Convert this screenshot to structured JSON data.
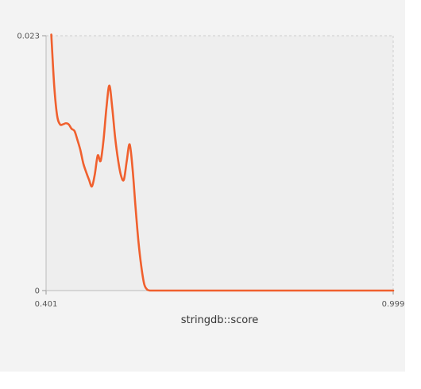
{
  "chart_data": {
    "type": "line",
    "xlabel": "stringdb::score",
    "ylabel": "",
    "title": "",
    "xlim": [
      0.401,
      0.999
    ],
    "ylim": [
      0,
      0.023
    ],
    "x_tick_labels": [
      "0.401",
      "0.999"
    ],
    "y_tick_labels": [
      "0",
      "0.023"
    ],
    "grid": false,
    "series": [
      {
        "color": "#f0602e",
        "x": [
          0.41,
          0.415,
          0.42,
          0.425,
          0.43,
          0.435,
          0.44,
          0.445,
          0.45,
          0.455,
          0.46,
          0.465,
          0.47,
          0.475,
          0.48,
          0.485,
          0.49,
          0.495,
          0.5,
          0.505,
          0.51,
          0.515,
          0.52,
          0.525,
          0.53,
          0.535,
          0.54,
          0.545,
          0.55,
          0.555,
          0.56,
          0.565,
          0.57,
          0.575,
          0.58,
          0.585,
          0.59,
          0.595,
          0.6,
          0.61,
          0.63,
          0.7,
          0.8,
          0.9,
          0.999
        ],
        "y": [
          0.0231,
          0.0185,
          0.0158,
          0.015,
          0.015,
          0.0151,
          0.015,
          0.0146,
          0.0144,
          0.0136,
          0.0127,
          0.0115,
          0.0107,
          0.01,
          0.0094,
          0.0105,
          0.0122,
          0.0117,
          0.0136,
          0.0165,
          0.0185,
          0.0165,
          0.0138,
          0.0118,
          0.0104,
          0.01,
          0.0117,
          0.0132,
          0.011,
          0.0076,
          0.0045,
          0.0022,
          0.0006,
          0.0001,
          0.0,
          0.0,
          0.0,
          0.0,
          0.0,
          0.0,
          0.0,
          0.0,
          0.0,
          0.0,
          0.0
        ]
      }
    ]
  }
}
